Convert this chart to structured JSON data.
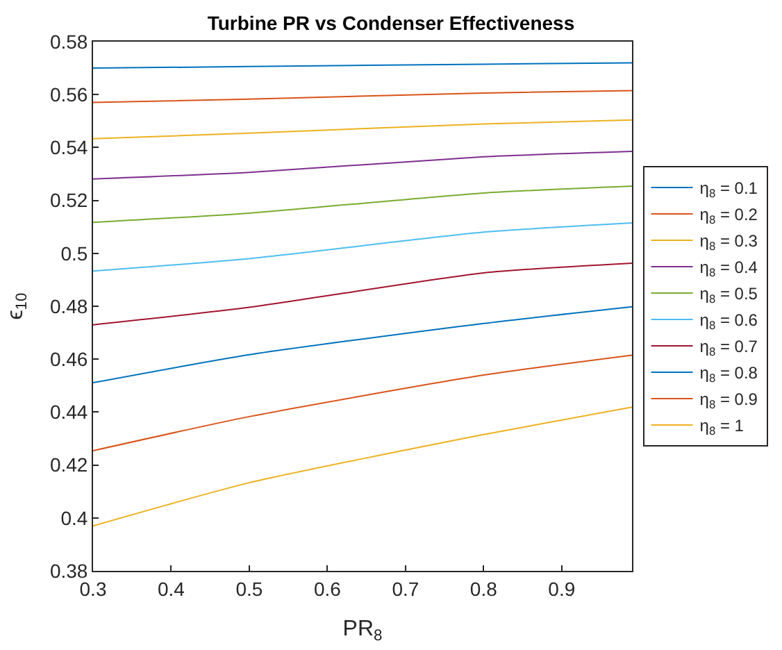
{
  "chart_data": {
    "type": "line",
    "title": "Turbine PR vs Condenser Effectiveness",
    "xlabel": "PR$_{8}$",
    "ylabel": "ϵ$_{10}$",
    "x": [
      0.3,
      0.5,
      0.8,
      0.99
    ],
    "xlim": [
      0.3,
      0.99
    ],
    "xticks": [
      0.3,
      0.4,
      0.5,
      0.6,
      0.7,
      0.8,
      0.9
    ],
    "ylim": [
      0.38,
      0.58
    ],
    "yticks": [
      0.38,
      0.4,
      0.42,
      0.44,
      0.46,
      0.48,
      0.5,
      0.52,
      0.54,
      0.56,
      0.58
    ],
    "legend": "right",
    "marker": "none",
    "line_style": "solid",
    "series": [
      {
        "name": "η$_{8}$ = 0.1",
        "color": "#0072bd",
        "values": [
          0.57,
          0.5706,
          0.5715,
          0.572
        ]
      },
      {
        "name": "η$_{8}$ = 0.2",
        "color": "#d95319",
        "values": [
          0.557,
          0.5583,
          0.5606,
          0.5615
        ]
      },
      {
        "name": "η$_{8}$ = 0.3",
        "color": "#edb120",
        "values": [
          0.5433,
          0.5454,
          0.5489,
          0.5504
        ]
      },
      {
        "name": "η$_{8}$ = 0.4",
        "color": "#7e2f8e",
        "values": [
          0.5281,
          0.5306,
          0.5365,
          0.5385
        ]
      },
      {
        "name": "η$_{8}$ = 0.5",
        "color": "#77ac30",
        "values": [
          0.5117,
          0.5152,
          0.5228,
          0.5254
        ]
      },
      {
        "name": "η$_{8}$ = 0.6",
        "color": "#4dbeee",
        "values": [
          0.4933,
          0.498,
          0.508,
          0.5115
        ]
      },
      {
        "name": "η$_{8}$ = 0.7",
        "color": "#a2142f",
        "values": [
          0.473,
          0.4796,
          0.4926,
          0.4963
        ]
      },
      {
        "name": "η$_{8}$ = 0.8",
        "color": "#0072bd",
        "values": [
          0.4511,
          0.4617,
          0.4735,
          0.4798
        ]
      },
      {
        "name": "η$_{8}$ = 0.9",
        "color": "#d95319",
        "values": [
          0.4254,
          0.4383,
          0.454,
          0.4615
        ]
      },
      {
        "name": "η$_{8}$ = 1",
        "color": "#edb120",
        "values": [
          0.397,
          0.4133,
          0.4315,
          0.4419
        ]
      }
    ]
  }
}
